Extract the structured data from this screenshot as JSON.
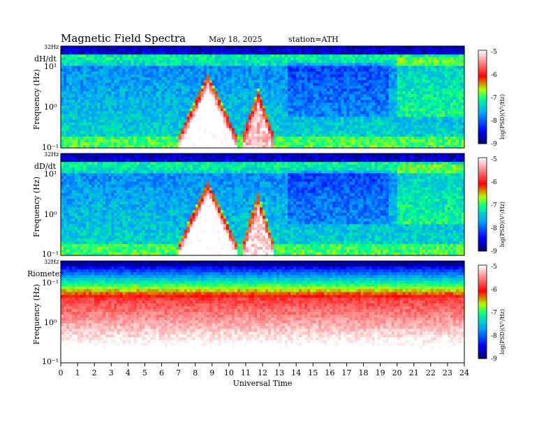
{
  "header": {
    "title": "Magnetic  Field  Spectra",
    "date": "May 18, 2025",
    "station": "station=ATH"
  },
  "chart_data": {
    "type": "heatmap",
    "xlabel": "Universal Time",
    "x_ticks": [
      "0",
      "1",
      "2",
      "3",
      "4",
      "5",
      "6",
      "7",
      "8",
      "9",
      "10",
      "11",
      "12",
      "13",
      "14",
      "15",
      "16",
      "17",
      "18",
      "19",
      "20",
      "21",
      "22",
      "23",
      "24"
    ],
    "xlim": [
      0,
      24
    ],
    "ylim_label_top": "32Hz",
    "colorbar": {
      "label": "log(PSD)(V²/Hz)",
      "ticks": [
        "-5",
        "-6",
        "-7",
        "-8",
        "-9"
      ],
      "range": [
        -9,
        -5
      ],
      "colors": [
        "#000070",
        "#0000ff",
        "#00a0ff",
        "#00ff90",
        "#b0ff00",
        "#ff0000",
        "#ffffff"
      ]
    },
    "panels": [
      {
        "name": "dH/dt",
        "ylabel": "Frequency  (Hz)",
        "y_ticks": [
          "32Hz",
          "10¹",
          "10⁰",
          "10⁻¹"
        ],
        "events": [
          {
            "start": 7.0,
            "end": 10.5,
            "peak_hour": 8.8,
            "strength": 1.0
          },
          {
            "start": 10.8,
            "end": 12.7,
            "peak_hour": 11.9,
            "strength": 0.75
          }
        ]
      },
      {
        "name": "dD/dt",
        "ylabel": "Frequency  (Hz)",
        "y_ticks": [
          "32Hz",
          "10¹",
          "10⁰",
          "10⁻¹"
        ],
        "events": [
          {
            "start": 7.0,
            "end": 10.5,
            "peak_hour": 8.8,
            "strength": 1.0
          },
          {
            "start": 10.8,
            "end": 12.7,
            "peak_hour": 12.0,
            "strength": 0.8
          }
        ]
      },
      {
        "name": "Riometer",
        "ylabel": "Frequency  (Hz)",
        "y_ticks": [
          "32Hz",
          "10⁻¹",
          "10⁰",
          "10⁻¹"
        ],
        "events": []
      }
    ]
  }
}
